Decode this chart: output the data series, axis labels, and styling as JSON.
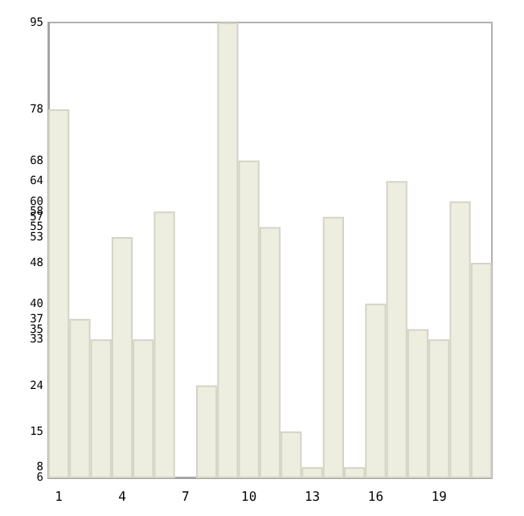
{
  "chart_data": {
    "type": "bar",
    "categories": [
      "1",
      null,
      null,
      "4",
      null,
      null,
      "7",
      null,
      null,
      "10",
      null,
      null,
      "13",
      null,
      null,
      "16",
      null,
      null,
      "19",
      null,
      null
    ],
    "values": [
      78,
      37,
      33,
      53,
      33,
      58,
      6,
      24,
      95,
      68,
      55,
      15,
      8,
      57,
      8,
      40,
      64,
      35,
      33,
      60,
      48
    ],
    "color": "#edeedf",
    "ylim": [
      6,
      95
    ],
    "yticks": [
      6,
      8,
      15,
      24,
      33,
      35,
      37,
      40,
      48,
      53,
      55,
      57,
      58,
      60,
      64,
      68,
      78,
      95
    ],
    "grid": false
  }
}
